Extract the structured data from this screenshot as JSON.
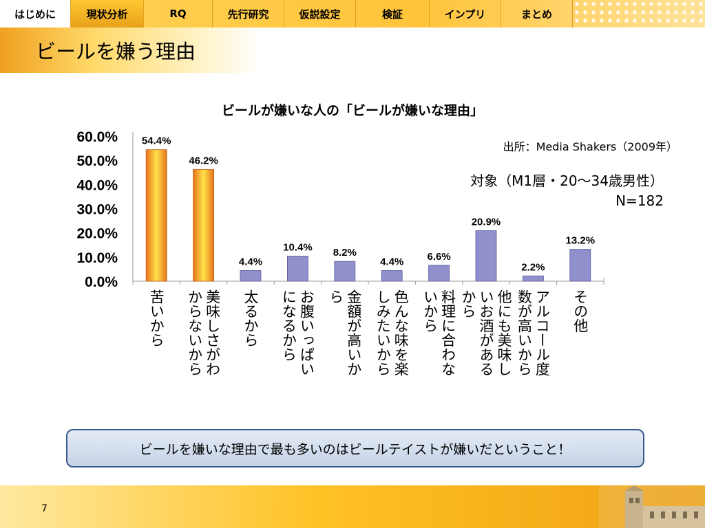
{
  "nav": {
    "tabs": [
      {
        "label": "はじめに",
        "active": false
      },
      {
        "label": "現状分析",
        "active": true
      },
      {
        "label": "RQ",
        "active": false
      },
      {
        "label": "先行研究",
        "active": false
      },
      {
        "label": "仮説設定",
        "active": false
      },
      {
        "label": "検証",
        "active": false
      },
      {
        "label": "インプリ",
        "active": false
      },
      {
        "label": "まとめ",
        "active": false
      }
    ]
  },
  "slide": {
    "title": "ビールを嫌う理由",
    "page_number": "7"
  },
  "chart_data": {
    "type": "bar",
    "title": "ビールが嫌いな人の「ビールが嫌いな理由」",
    "source": "出所：Media Shakers（2009年）",
    "target": "対象（M1層・20～34歳男性）",
    "sample": "N=182",
    "ylim": [
      0,
      60
    ],
    "yticks": [
      "60.0%",
      "50.0%",
      "40.0%",
      "30.0%",
      "20.0%",
      "10.0%",
      "0.0%"
    ],
    "grid": false,
    "categories": [
      "苦いから",
      "美味しさがわからないから",
      "太るから",
      "お腹いっぱいになるから",
      "金額が高いから",
      "色んな味を楽しみたいから",
      "料理に合わないから",
      "他にも美味しいお酒があるから",
      "アルコール度数が高いから",
      "その他"
    ],
    "values": [
      54.4,
      46.2,
      4.4,
      10.4,
      8.2,
      4.4,
      6.6,
      20.9,
      2.2,
      13.2
    ],
    "value_labels": [
      "54.4%",
      "46.2%",
      "4.4%",
      "10.4%",
      "8.2%",
      "4.4%",
      "6.6%",
      "20.9%",
      "2.2%",
      "13.2%"
    ],
    "colors": {
      "highlight": "#e8741c",
      "highlight_center": "#ffe24a",
      "normal": "#8f90cc",
      "normal_stroke": "#5a5a9a"
    },
    "highlight_count": 2
  },
  "callout": {
    "text": "ビールを嫌いな理由で最も多いのはビールテイストが嫌いだということ！"
  }
}
